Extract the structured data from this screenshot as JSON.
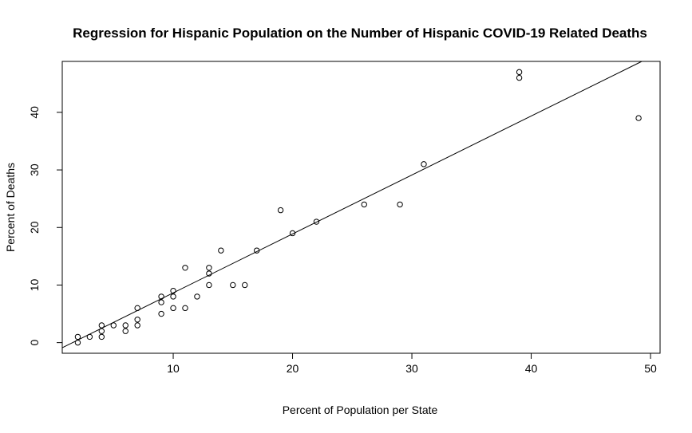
{
  "chart_data": {
    "type": "scatter",
    "title": "Regression for Hispanic Population on the Number of Hispanic COVID-19 Related Deaths",
    "xlabel": "Percent of Population per State",
    "ylabel": "Percent of Deaths",
    "xlim": [
      0.7,
      50.8
    ],
    "ylim": [
      -1.85,
      48.85
    ],
    "x_ticks": [
      10,
      20,
      30,
      40,
      50
    ],
    "y_ticks": [
      0,
      10,
      20,
      30,
      40
    ],
    "grid": false,
    "legend": "none",
    "points": [
      {
        "x": 2,
        "y": 0
      },
      {
        "x": 2,
        "y": 1
      },
      {
        "x": 3,
        "y": 1
      },
      {
        "x": 4,
        "y": 1
      },
      {
        "x": 4,
        "y": 2
      },
      {
        "x": 4,
        "y": 3
      },
      {
        "x": 5,
        "y": 3
      },
      {
        "x": 6,
        "y": 2
      },
      {
        "x": 6,
        "y": 3
      },
      {
        "x": 7,
        "y": 3
      },
      {
        "x": 7,
        "y": 4
      },
      {
        "x": 7,
        "y": 6
      },
      {
        "x": 9,
        "y": 5
      },
      {
        "x": 9,
        "y": 7
      },
      {
        "x": 9,
        "y": 8
      },
      {
        "x": 10,
        "y": 6
      },
      {
        "x": 10,
        "y": 8
      },
      {
        "x": 10,
        "y": 9
      },
      {
        "x": 11,
        "y": 6
      },
      {
        "x": 11,
        "y": 13
      },
      {
        "x": 12,
        "y": 8
      },
      {
        "x": 13,
        "y": 10
      },
      {
        "x": 13,
        "y": 12
      },
      {
        "x": 13,
        "y": 13
      },
      {
        "x": 14,
        "y": 16
      },
      {
        "x": 15,
        "y": 10
      },
      {
        "x": 16,
        "y": 10
      },
      {
        "x": 17,
        "y": 16
      },
      {
        "x": 19,
        "y": 23
      },
      {
        "x": 20,
        "y": 19
      },
      {
        "x": 22,
        "y": 21
      },
      {
        "x": 26,
        "y": 24
      },
      {
        "x": 29,
        "y": 24
      },
      {
        "x": 31,
        "y": 31
      },
      {
        "x": 39,
        "y": 46
      },
      {
        "x": 39,
        "y": 47
      },
      {
        "x": 49,
        "y": 39
      }
    ],
    "regression_line": {
      "intercept": -1.6,
      "slope": 1.024
    },
    "colors": {
      "points": "#000000",
      "line": "#000000",
      "background": "#ffffff"
    }
  }
}
